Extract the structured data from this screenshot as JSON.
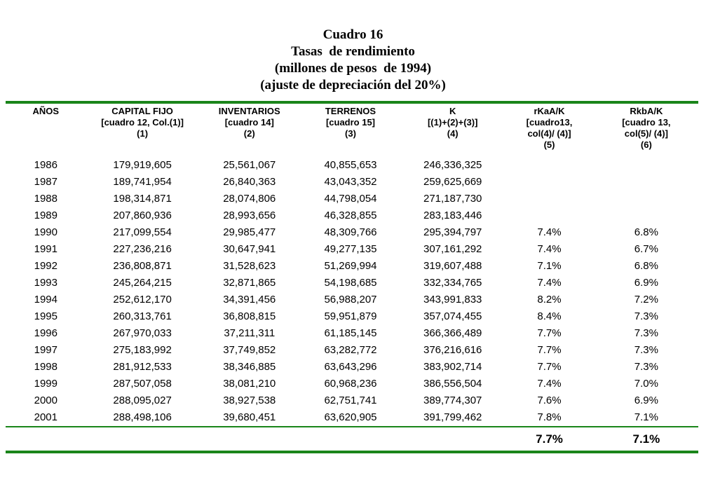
{
  "colors": {
    "rule_green": "#1a851a",
    "text": "#000000"
  },
  "title": {
    "line1": "Cuadro 16",
    "line2": "Tasas  de rendimiento",
    "line3": "(millones de pesos  de 1994)",
    "line4": "(ajuste de depreciación del 20%)"
  },
  "table": {
    "columns": [
      {
        "label": "AÑOS",
        "ref": "",
        "ref2": "",
        "num": ""
      },
      {
        "label": "CAPITAL FIJO",
        "ref": "[cuadro 12, Col.(1)]",
        "ref2": "",
        "num": "(1)"
      },
      {
        "label": "INVENTARIOS",
        "ref": "[cuadro 14]",
        "ref2": "",
        "num": "(2)"
      },
      {
        "label": "TERRENOS",
        "ref": "[cuadro 15]",
        "ref2": "",
        "num": "(3)"
      },
      {
        "label": "K",
        "ref": "[(1)+(2)+(3)]",
        "ref2": "",
        "num": "(4)"
      },
      {
        "label": "rKaA/K",
        "ref": "[cuadro13,",
        "ref2": "col(4)/ (4)]",
        "num": "(5)"
      },
      {
        "label": "RkbA/K",
        "ref": "[cuadro 13,",
        "ref2": "col(5)/ (4)]",
        "num": "(6)"
      }
    ],
    "rows": [
      [
        "1986",
        "179,919,605",
        "25,561,067",
        "40,855,653",
        "246,336,325",
        "",
        ""
      ],
      [
        "1987",
        "189,741,954",
        "26,840,363",
        "43,043,352",
        "259,625,669",
        "",
        ""
      ],
      [
        "1988",
        "198,314,871",
        "28,074,806",
        "44,798,054",
        "271,187,730",
        "",
        ""
      ],
      [
        "1989",
        "207,860,936",
        "28,993,656",
        "46,328,855",
        "283,183,446",
        "",
        ""
      ],
      [
        "1990",
        "217,099,554",
        "29,985,477",
        "48,309,766",
        "295,394,797",
        "7.4%",
        "6.8%"
      ],
      [
        "1991",
        "227,236,216",
        "30,647,941",
        "49,277,135",
        "307,161,292",
        "7.4%",
        "6.7%"
      ],
      [
        "1992",
        "236,808,871",
        "31,528,623",
        "51,269,994",
        "319,607,488",
        "7.1%",
        "6.8%"
      ],
      [
        "1993",
        "245,264,215",
        "32,871,865",
        "54,198,685",
        "332,334,765",
        "7.4%",
        "6.9%"
      ],
      [
        "1994",
        "252,612,170",
        "34,391,456",
        "56,988,207",
        "343,991,833",
        "8.2%",
        "7.2%"
      ],
      [
        "1995",
        "260,313,761",
        "36,808,815",
        "59,951,879",
        "357,074,455",
        "8.4%",
        "7.3%"
      ],
      [
        "1996",
        "267,970,033",
        "37,211,311",
        "61,185,145",
        "366,366,489",
        "7.7%",
        "7.3%"
      ],
      [
        "1997",
        "275,183,992",
        "37,749,852",
        "63,282,772",
        "376,216,616",
        "7.7%",
        "7.3%"
      ],
      [
        "1998",
        "281,912,533",
        "38,346,885",
        "63,643,296",
        "383,902,714",
        "7.7%",
        "7.3%"
      ],
      [
        "1999",
        "287,507,058",
        "38,081,210",
        "60,968,236",
        "386,556,504",
        "7.4%",
        "7.0%"
      ],
      [
        "2000",
        "288,095,027",
        "38,927,538",
        "62,751,741",
        "389,774,307",
        "7.6%",
        "6.9%"
      ],
      [
        "2001",
        "288,498,106",
        "39,680,451",
        "63,620,905",
        "391,799,462",
        "7.8%",
        "7.1%"
      ]
    ],
    "summary": [
      "",
      "",
      "",
      "",
      "",
      "7.7%",
      "7.1%"
    ]
  }
}
